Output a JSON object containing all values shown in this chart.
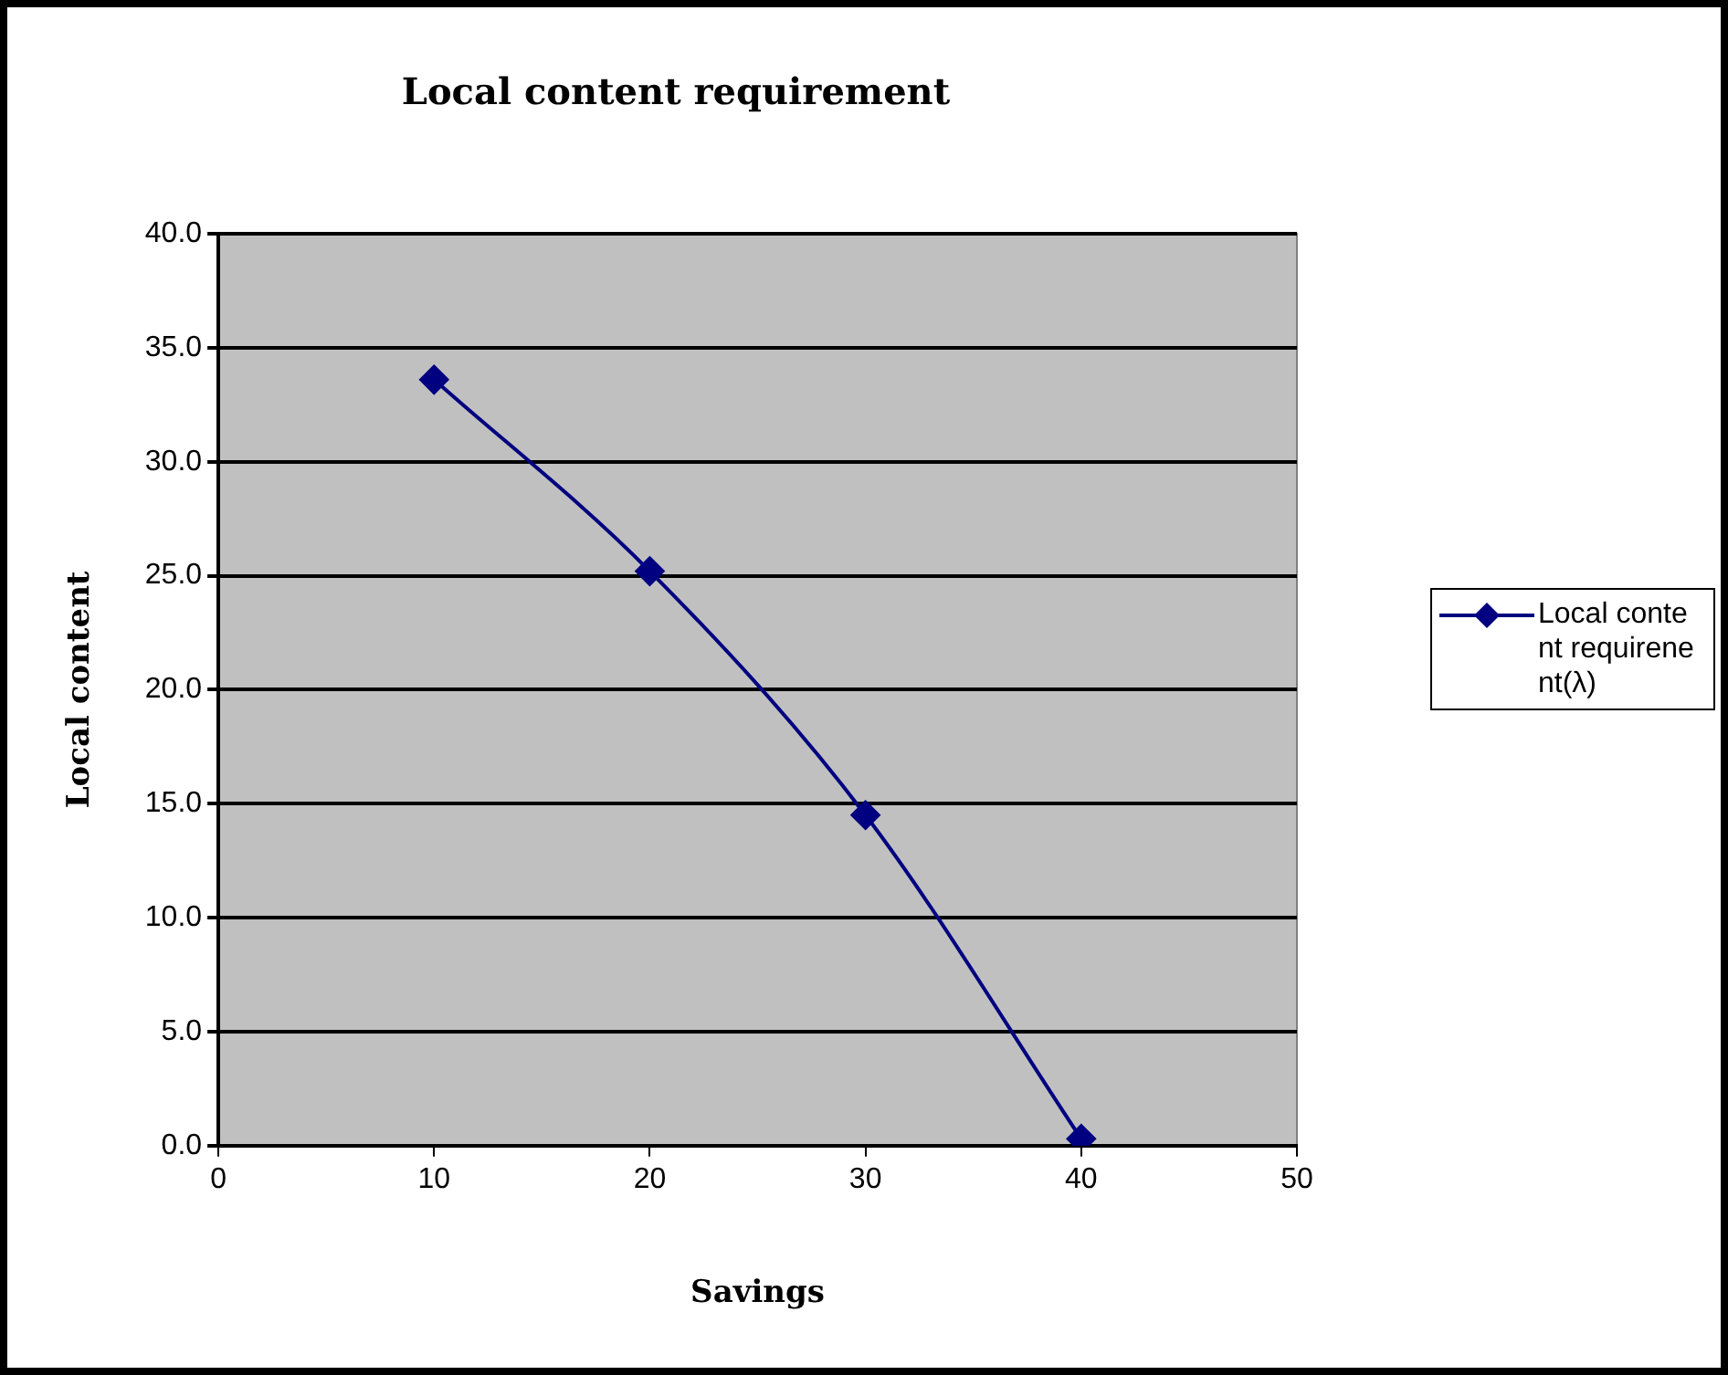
{
  "chart_data": {
    "type": "line",
    "title": "Local content requirement",
    "xlabel": "Savings",
    "ylabel": "Local content",
    "x": [
      10,
      20,
      30,
      40
    ],
    "series": [
      {
        "name": "Local content requirenent(λ)",
        "color": "#000080",
        "values": [
          33.6,
          25.2,
          14.5,
          0.3
        ]
      }
    ],
    "xlim": [
      0,
      50
    ],
    "xticks": [
      0,
      10,
      20,
      30,
      40,
      50
    ],
    "ylim": [
      0,
      40
    ],
    "yticks": [
      {
        "value": 0,
        "label": "0.0"
      },
      {
        "value": 5,
        "label": "5.0"
      },
      {
        "value": 10,
        "label": "10.0"
      },
      {
        "value": 15,
        "label": "15.0"
      },
      {
        "value": 20,
        "label": "20.0"
      },
      {
        "value": 25,
        "label": "25.0"
      },
      {
        "value": 30,
        "label": "30.0"
      },
      {
        "value": 35,
        "label": "35.0"
      },
      {
        "value": 40,
        "label": "40.0"
      }
    ],
    "grid": "y",
    "legend": "right",
    "marker": "diamond",
    "line_style": "solid"
  }
}
